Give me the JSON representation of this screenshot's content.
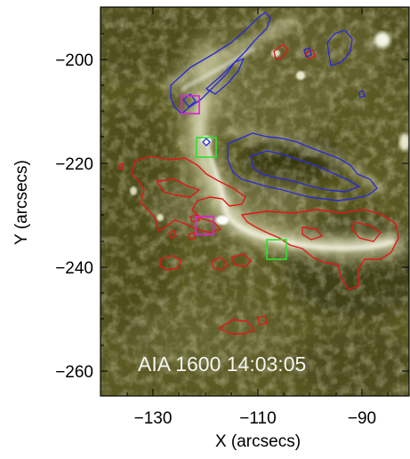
{
  "figure": {
    "instrument_label": "AIA  1600  14:03:05",
    "x_axis_label": "X (arcsecs)",
    "y_axis_label": "Y (arcsecs)",
    "x_ticks": [
      "−130",
      "−110",
      "−90"
    ],
    "y_ticks": [
      "−200",
      "−220",
      "−240",
      "−260"
    ],
    "x_range": [
      -139,
      -81
    ],
    "y_range": [
      -264,
      -191
    ],
    "colors": {
      "contour_positive": "#2b2bd6",
      "contour_negative": "#e01818",
      "box_magenta": "#e020e0",
      "box_green": "#30e030",
      "background_dark": "#3a3a14",
      "ribbon_bright": "#f2f2dc",
      "label_text": "#f4f4f4"
    }
  }
}
